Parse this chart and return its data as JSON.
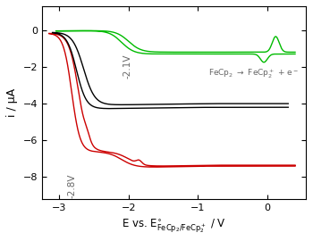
{
  "ylabel": "i / μA",
  "xlabel": "E vs. $\\mathregular{E^{\\circ}_{FeCp_2/FeCp_2^+}}$ / V",
  "xlim": [
    -3.25,
    0.55
  ],
  "ylim": [
    -9.2,
    1.3
  ],
  "yticks": [
    0,
    -2,
    -4,
    -6,
    -8
  ],
  "xticks": [
    -3.0,
    -2.0,
    -1.0,
    0.0
  ],
  "ann1_text": "-2.1V",
  "ann1_x": -2.08,
  "ann1_y": -1.3,
  "ann2_text": "-2.8V",
  "ann2_x": -2.88,
  "ann2_y": -7.8,
  "ann3_text": "FeCp$_2$ $\\rightarrow$ FeCp$_2^+$ + e$^-$",
  "ann3_x": -0.85,
  "ann3_y": -2.5,
  "colors": {
    "black": "#000000",
    "green": "#00bb00",
    "red": "#cc0000",
    "ann": "#666666"
  },
  "bg": "#ffffff"
}
